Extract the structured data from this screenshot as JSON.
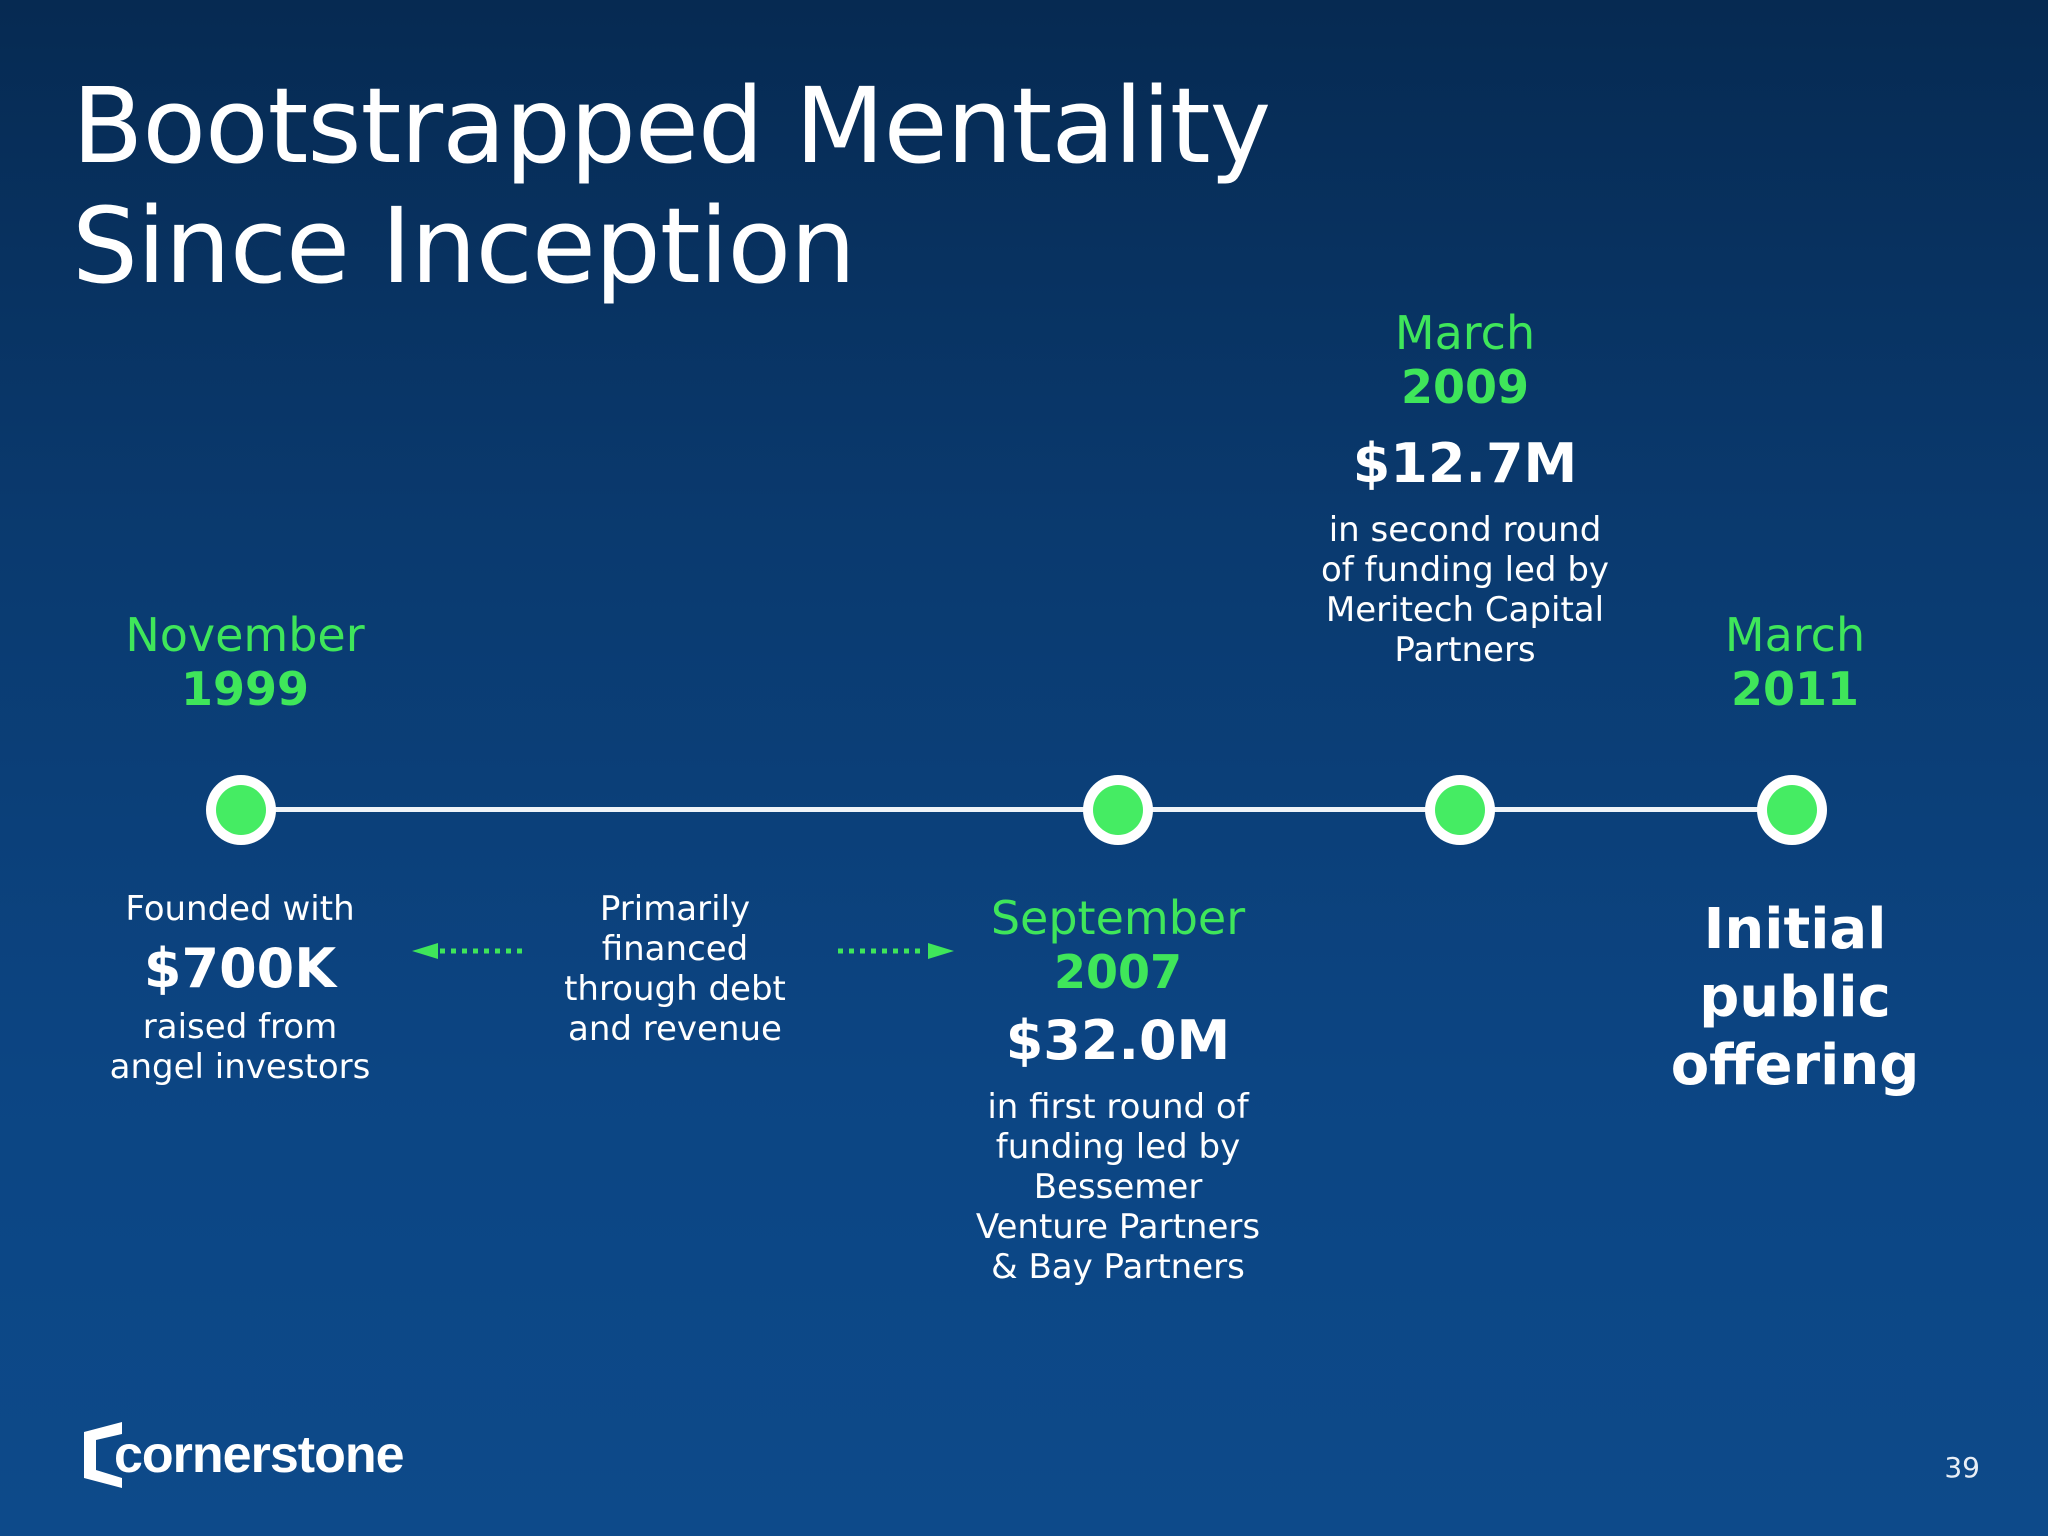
{
  "slide": {
    "title_line1": "Bootstrapped Mentality",
    "title_line2": "Since Inception",
    "page_number": "39",
    "logo_text": "cornerstone"
  },
  "colors": {
    "accent_green": "#3fe65a",
    "background": "#0a3a6f",
    "text": "#ffffff"
  },
  "milestones": [
    {
      "month": "November",
      "year": "1999",
      "pre_text": "Founded with",
      "amount": "$700K",
      "description": [
        "raised from",
        "angel investors"
      ]
    },
    {
      "month": "September",
      "year": "2007",
      "amount": "$32.0M",
      "description": [
        "in first round of",
        "funding led by",
        "Bessemer",
        "Venture Partners",
        "& Bay Partners"
      ]
    },
    {
      "month": "March",
      "year": "2009",
      "amount": "$12.7M",
      "description": [
        "in second round",
        "of funding led by",
        "Meritech Capital",
        "Partners"
      ]
    },
    {
      "month": "March",
      "year": "2011",
      "event": [
        "Initial public",
        "offering"
      ]
    }
  ],
  "interim_note": [
    "Primarily",
    "financed",
    "through debt",
    "and revenue"
  ]
}
